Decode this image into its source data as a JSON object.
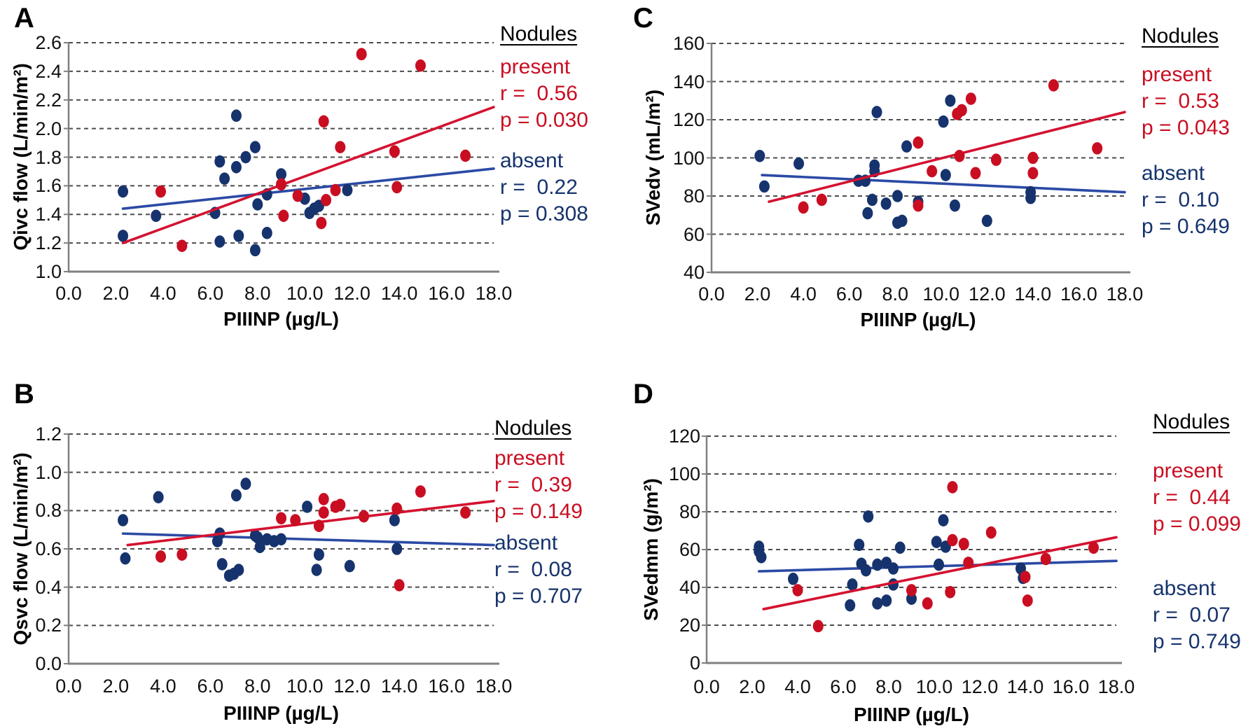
{
  "figure": {
    "panel_letters": [
      "A",
      "B",
      "C",
      "D"
    ],
    "x_axis_label": "PIIINP (µg/L)"
  },
  "colors": {
    "present": "#c90e22",
    "present_line": "#d41230",
    "absent": "#16336d",
    "absent_line": "#2b4aa5",
    "grid": "#4d4d4d",
    "axis": "#808080",
    "legend_title": "#000000"
  },
  "chart_data": [
    {
      "type": "scatter",
      "panel": "A",
      "title": "",
      "xlabel": "PIIINP (µg/L)",
      "ylabel": "Qivc flow (L/min/m²)",
      "xlim": [
        0,
        18
      ],
      "ylim": [
        1.0,
        2.6
      ],
      "xticks": [
        0,
        2,
        4,
        6,
        8,
        10,
        12,
        14,
        16,
        18
      ],
      "xtick_labels": [
        "0.0",
        "2.0",
        "4.0",
        "6.0",
        "8.0",
        "10.0",
        "12.0",
        "14.0",
        "16.0",
        "18.0"
      ],
      "yticks": [
        1.0,
        1.2,
        1.4,
        1.6,
        1.8,
        2.0,
        2.2,
        2.4,
        2.6
      ],
      "ytick_labels": [
        "1.0",
        "1.2",
        "1.4",
        "1.6",
        "1.8",
        "2.0",
        "2.2",
        "2.4",
        "2.6"
      ],
      "grid": "horizontal-dashed",
      "legend": {
        "title": "Nodules",
        "present_label": "present",
        "present_r": "r =  0.56",
        "present_p": "p = 0.030",
        "absent_label": "absent",
        "absent_r": "r =  0.22",
        "absent_p": "p = 0.308"
      },
      "series": [
        {
          "name": "absent",
          "r": 0.22,
          "p": 0.308,
          "points": [
            [
              2.3,
              1.56
            ],
            [
              2.3,
              1.25
            ],
            [
              3.7,
              1.39
            ],
            [
              6.2,
              1.41
            ],
            [
              6.4,
              1.77
            ],
            [
              6.4,
              1.21
            ],
            [
              6.6,
              1.65
            ],
            [
              7.1,
              2.09
            ],
            [
              7.1,
              1.73
            ],
            [
              7.2,
              1.25
            ],
            [
              7.5,
              1.8
            ],
            [
              7.9,
              1.87
            ],
            [
              7.9,
              1.15
            ],
            [
              8.0,
              1.47
            ],
            [
              8.4,
              1.54
            ],
            [
              8.4,
              1.27
            ],
            [
              9.0,
              1.68
            ],
            [
              10.0,
              1.51
            ],
            [
              10.2,
              1.41
            ],
            [
              10.4,
              1.44
            ],
            [
              10.6,
              1.46
            ],
            [
              11.8,
              1.57
            ]
          ],
          "trendline": [
            [
              2.3,
              1.44
            ],
            [
              18,
              1.72
            ]
          ]
        },
        {
          "name": "present",
          "r": 0.56,
          "p": 0.03,
          "points": [
            [
              3.9,
              1.56
            ],
            [
              4.8,
              1.18
            ],
            [
              9.0,
              1.61
            ],
            [
              9.1,
              1.39
            ],
            [
              9.7,
              1.53
            ],
            [
              10.7,
              1.34
            ],
            [
              10.8,
              2.05
            ],
            [
              10.9,
              1.5
            ],
            [
              11.3,
              1.57
            ],
            [
              11.5,
              1.87
            ],
            [
              12.4,
              2.52
            ],
            [
              13.8,
              1.84
            ],
            [
              13.9,
              1.59
            ],
            [
              14.9,
              2.44
            ],
            [
              16.8,
              1.81
            ]
          ],
          "trendline": [
            [
              2.3,
              1.2
            ],
            [
              18,
              2.15
            ]
          ]
        }
      ]
    },
    {
      "type": "scatter",
      "panel": "B",
      "title": "",
      "xlabel": "PIIINP (µg/L)",
      "ylabel": "Qsvc flow (L/min/m²)",
      "xlim": [
        0,
        18
      ],
      "ylim": [
        0.0,
        1.2
      ],
      "xticks": [
        0,
        2,
        4,
        6,
        8,
        10,
        12,
        14,
        16,
        18
      ],
      "xtick_labels": [
        "0.0",
        "2.0",
        "4.0",
        "6.0",
        "8.0",
        "10.0",
        "12.0",
        "14.0",
        "16.0",
        "18.0"
      ],
      "yticks": [
        0.0,
        0.2,
        0.4,
        0.6,
        0.8,
        1.0,
        1.2
      ],
      "ytick_labels": [
        "0.0",
        "0.2",
        "0.4",
        "0.6",
        "0.8",
        "1.0",
        "1.2"
      ],
      "grid": "horizontal-dashed",
      "legend": {
        "title": "Nodules",
        "present_label": "present",
        "present_r": "r =  0.39",
        "present_p": "p = 0.149",
        "absent_label": "absent",
        "absent_r": "r =  0.08",
        "absent_p": "p = 0.707"
      },
      "series": [
        {
          "name": "absent",
          "r": 0.08,
          "p": 0.707,
          "points": [
            [
              2.3,
              0.75
            ],
            [
              2.4,
              0.55
            ],
            [
              3.8,
              0.87
            ],
            [
              6.3,
              0.64
            ],
            [
              6.4,
              0.68
            ],
            [
              6.5,
              0.52
            ],
            [
              6.8,
              0.46
            ],
            [
              7.0,
              0.47
            ],
            [
              7.1,
              0.88
            ],
            [
              7.2,
              0.49
            ],
            [
              7.5,
              0.94
            ],
            [
              7.9,
              0.67
            ],
            [
              8.0,
              0.66
            ],
            [
              8.1,
              0.61
            ],
            [
              8.4,
              0.65
            ],
            [
              8.7,
              0.64
            ],
            [
              9.0,
              0.65
            ],
            [
              10.1,
              0.82
            ],
            [
              10.5,
              0.49
            ],
            [
              10.6,
              0.57
            ],
            [
              11.9,
              0.51
            ],
            [
              13.8,
              0.75
            ],
            [
              13.9,
              0.6
            ]
          ],
          "trendline": [
            [
              2.3,
              0.68
            ],
            [
              18,
              0.62
            ]
          ]
        },
        {
          "name": "present",
          "r": 0.39,
          "p": 0.149,
          "points": [
            [
              3.9,
              0.56
            ],
            [
              4.8,
              0.57
            ],
            [
              9.0,
              0.76
            ],
            [
              9.6,
              0.75
            ],
            [
              10.6,
              0.72
            ],
            [
              10.8,
              0.86
            ],
            [
              10.8,
              0.79
            ],
            [
              11.3,
              0.82
            ],
            [
              11.5,
              0.83
            ],
            [
              12.5,
              0.77
            ],
            [
              13.9,
              0.81
            ],
            [
              14.0,
              0.41
            ],
            [
              14.9,
              0.9
            ],
            [
              16.8,
              0.79
            ]
          ],
          "trendline": [
            [
              2.5,
              0.62
            ],
            [
              18,
              0.85
            ]
          ]
        }
      ]
    },
    {
      "type": "scatter",
      "panel": "C",
      "title": "",
      "xlabel": "PIIINP (µg/L)",
      "ylabel": "SVedv (mL/m²)",
      "xlim": [
        0,
        18
      ],
      "ylim": [
        40,
        160
      ],
      "xticks": [
        0,
        2,
        4,
        6,
        8,
        10,
        12,
        14,
        16,
        18
      ],
      "xtick_labels": [
        "0.0",
        "2.0",
        "4.0",
        "6.0",
        "8.0",
        "10.0",
        "12.0",
        "14.0",
        "16.0",
        "18.0"
      ],
      "yticks": [
        40,
        60,
        80,
        100,
        120,
        140,
        160
      ],
      "ytick_labels": [
        "40",
        "60",
        "80",
        "100",
        "120",
        "140",
        "160"
      ],
      "grid": "horizontal-dashed",
      "legend": {
        "title": "Nodules",
        "present_label": "present",
        "present_r": "r =  0.53",
        "present_p": "p = 0.043",
        "absent_label": "absent",
        "absent_r": "r =  0.10",
        "absent_p": "p = 0.649"
      },
      "series": [
        {
          "name": "absent",
          "r": 0.1,
          "p": 0.649,
          "points": [
            [
              2.1,
              101
            ],
            [
              2.3,
              85
            ],
            [
              3.8,
              97
            ],
            [
              6.4,
              88
            ],
            [
              6.7,
              88
            ],
            [
              6.8,
              71
            ],
            [
              7.0,
              78
            ],
            [
              7.1,
              96
            ],
            [
              7.1,
              93
            ],
            [
              7.2,
              124
            ],
            [
              7.6,
              76
            ],
            [
              8.1,
              80
            ],
            [
              8.1,
              66
            ],
            [
              8.3,
              67
            ],
            [
              8.5,
              106
            ],
            [
              9.0,
              77
            ],
            [
              10.1,
              119
            ],
            [
              10.2,
              91
            ],
            [
              10.4,
              130
            ],
            [
              10.6,
              75
            ],
            [
              12.0,
              67
            ],
            [
              13.9,
              82
            ],
            [
              13.9,
              79
            ]
          ],
          "trendline": [
            [
              2.2,
              91
            ],
            [
              18,
              82
            ]
          ]
        },
        {
          "name": "present",
          "r": 0.53,
          "p": 0.043,
          "points": [
            [
              4.0,
              74
            ],
            [
              4.8,
              78
            ],
            [
              9.0,
              108
            ],
            [
              9.0,
              75
            ],
            [
              9.6,
              93
            ],
            [
              10.7,
              123
            ],
            [
              10.8,
              101
            ],
            [
              10.9,
              125
            ],
            [
              11.3,
              131
            ],
            [
              11.5,
              92
            ],
            [
              12.4,
              99
            ],
            [
              14.0,
              100
            ],
            [
              14.0,
              92
            ],
            [
              14.9,
              138
            ],
            [
              16.8,
              105
            ]
          ],
          "trendline": [
            [
              2.5,
              77
            ],
            [
              18,
              124
            ]
          ]
        }
      ]
    },
    {
      "type": "scatter",
      "panel": "D",
      "title": "",
      "xlabel": "PIIINP (µg/L)",
      "ylabel": "SVedmm (g/m²)",
      "xlim": [
        0,
        18
      ],
      "ylim": [
        0,
        120
      ],
      "xticks": [
        0,
        2,
        4,
        6,
        8,
        10,
        12,
        14,
        16,
        18
      ],
      "xtick_labels": [
        "0.0",
        "2.0",
        "4.0",
        "6.0",
        "8.0",
        "10.0",
        "12.0",
        "14.0",
        "16.0",
        "18.0"
      ],
      "yticks": [
        0,
        20,
        40,
        60,
        80,
        100,
        120
      ],
      "ytick_labels": [
        "0",
        "20",
        "40",
        "60",
        "80",
        "100",
        "120"
      ],
      "grid": "horizontal-dashed",
      "legend": {
        "title": "Nodules",
        "present_label": "present",
        "present_r": "r =  0.44",
        "present_p": "p = 0.099",
        "absent_label": "absent",
        "absent_r": "r =  0.07",
        "absent_p": "p = 0.749"
      },
      "series": [
        {
          "name": "absent",
          "r": 0.07,
          "p": 0.749,
          "points": [
            [
              2.3,
              61.5
            ],
            [
              2.3,
              59
            ],
            [
              2.4,
              56
            ],
            [
              3.8,
              44.5
            ],
            [
              6.3,
              30.5
            ],
            [
              6.4,
              41.5
            ],
            [
              6.7,
              62.5
            ],
            [
              6.8,
              52.5
            ],
            [
              7.0,
              49
            ],
            [
              7.1,
              77.5
            ],
            [
              7.5,
              31.5
            ],
            [
              7.5,
              52
            ],
            [
              7.9,
              53
            ],
            [
              7.9,
              33
            ],
            [
              8.2,
              50
            ],
            [
              8.2,
              41.5
            ],
            [
              8.5,
              61
            ],
            [
              9.0,
              34
            ],
            [
              10.1,
              64
            ],
            [
              10.2,
              52
            ],
            [
              10.4,
              75.5
            ],
            [
              10.5,
              61.5
            ],
            [
              13.8,
              50
            ],
            [
              13.9,
              45
            ]
          ],
          "trendline": [
            [
              2.3,
              48.5
            ],
            [
              18,
              54
            ]
          ]
        },
        {
          "name": "present",
          "r": 0.44,
          "p": 0.099,
          "points": [
            [
              4.0,
              38.5
            ],
            [
              4.9,
              19.5
            ],
            [
              9.0,
              38.5
            ],
            [
              9.7,
              31.5
            ],
            [
              10.7,
              37.5
            ],
            [
              10.8,
              93
            ],
            [
              10.8,
              65
            ],
            [
              11.3,
              63
            ],
            [
              11.5,
              53
            ],
            [
              12.5,
              69
            ],
            [
              14.0,
              45.5
            ],
            [
              14.1,
              33
            ],
            [
              14.9,
              55
            ],
            [
              17.0,
              61
            ]
          ],
          "trendline": [
            [
              2.5,
              28.5
            ],
            [
              18,
              66.5
            ]
          ]
        }
      ]
    }
  ]
}
